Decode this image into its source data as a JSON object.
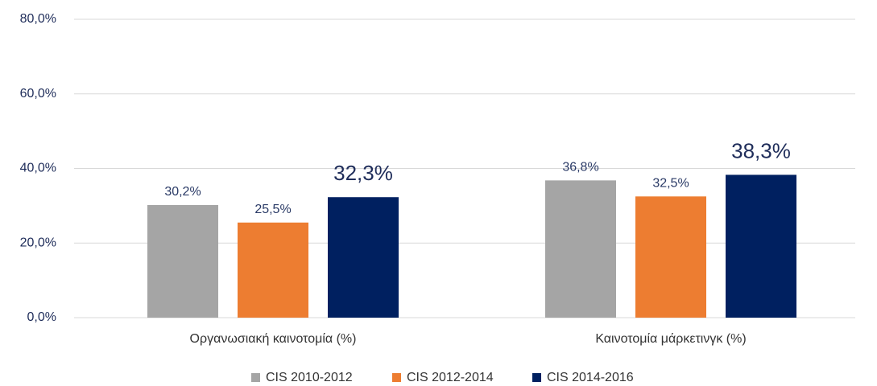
{
  "chart_data": {
    "type": "bar",
    "categories": [
      "Οργανωσιακή καινοτομία (%)",
      "Καινοτομία μάρκετινγκ (%)"
    ],
    "series": [
      {
        "name": "CIS 2010-2012",
        "color": "#a5a5a5",
        "values": [
          30.2,
          36.8
        ],
        "value_labels": [
          "30,2%",
          "36,8%"
        ]
      },
      {
        "name": "CIS 2012-2014",
        "color": "#ed7d31",
        "values": [
          25.5,
          32.5
        ],
        "value_labels": [
          "25,5%",
          "32,5%"
        ]
      },
      {
        "name": "CIS 2014-2016",
        "color": "#002060",
        "values": [
          32.3,
          38.3
        ],
        "value_labels": [
          "32,3%",
          "38,3%"
        ]
      }
    ],
    "ylim": [
      0,
      80
    ],
    "yticks": [
      {
        "value": 0,
        "label": "0,0%"
      },
      {
        "value": 20,
        "label": "20,0%"
      },
      {
        "value": 40,
        "label": "40,0%"
      },
      {
        "value": 60,
        "label": "60,0%"
      },
      {
        "value": 80,
        "label": "80,0%"
      }
    ],
    "grid": true,
    "legend": "bottom"
  }
}
